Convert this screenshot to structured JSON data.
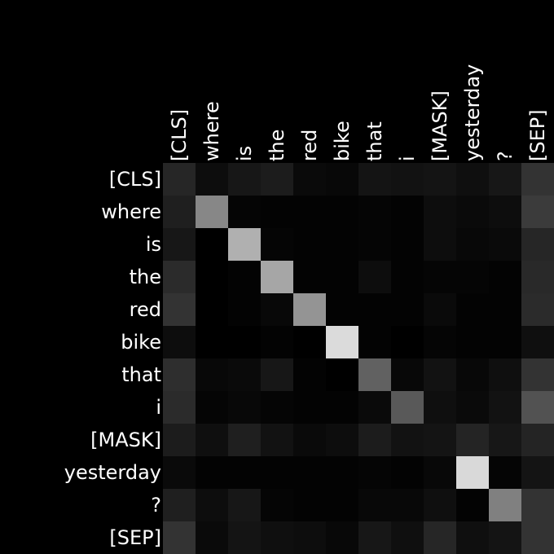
{
  "chart_data": {
    "type": "heatmap",
    "colormap": "grayscale",
    "grid": false,
    "row_labels": [
      "[CLS]",
      "where",
      "is",
      "the",
      "red",
      "bike",
      "that",
      "i",
      "[MASK]",
      "yesterday",
      "?",
      "[SEP]"
    ],
    "col_labels": [
      "[CLS]",
      "where",
      "is",
      "the",
      "red",
      "bike",
      "that",
      "i",
      "[MASK]",
      "yesterday",
      "?",
      "[SEP]"
    ],
    "values": [
      [
        0.15,
        0.05,
        0.09,
        0.11,
        0.04,
        0.03,
        0.08,
        0.07,
        0.08,
        0.06,
        0.09,
        0.2
      ],
      [
        0.12,
        0.53,
        0.02,
        0.01,
        0.01,
        0.01,
        0.02,
        0.01,
        0.05,
        0.04,
        0.05,
        0.23
      ],
      [
        0.09,
        0.0,
        0.69,
        0.02,
        0.01,
        0.01,
        0.02,
        0.01,
        0.05,
        0.03,
        0.04,
        0.15
      ],
      [
        0.17,
        0.0,
        0.01,
        0.65,
        0.01,
        0.01,
        0.05,
        0.01,
        0.02,
        0.02,
        0.01,
        0.16
      ],
      [
        0.2,
        0.0,
        0.01,
        0.03,
        0.58,
        0.01,
        0.01,
        0.01,
        0.04,
        0.01,
        0.01,
        0.17
      ],
      [
        0.05,
        0.0,
        0.0,
        0.01,
        0.0,
        0.86,
        0.01,
        0.0,
        0.02,
        0.01,
        0.01,
        0.06
      ],
      [
        0.18,
        0.03,
        0.04,
        0.09,
        0.01,
        0.0,
        0.38,
        0.03,
        0.07,
        0.03,
        0.06,
        0.2
      ],
      [
        0.17,
        0.02,
        0.03,
        0.02,
        0.01,
        0.01,
        0.04,
        0.35,
        0.06,
        0.04,
        0.07,
        0.32
      ],
      [
        0.11,
        0.06,
        0.12,
        0.07,
        0.04,
        0.05,
        0.11,
        0.07,
        0.08,
        0.14,
        0.09,
        0.14
      ],
      [
        0.04,
        0.01,
        0.01,
        0.01,
        0.01,
        0.01,
        0.02,
        0.01,
        0.03,
        0.85,
        0.02,
        0.08
      ],
      [
        0.12,
        0.05,
        0.09,
        0.02,
        0.01,
        0.01,
        0.03,
        0.03,
        0.06,
        0.01,
        0.5,
        0.2
      ],
      [
        0.2,
        0.04,
        0.08,
        0.06,
        0.05,
        0.03,
        0.09,
        0.06,
        0.15,
        0.06,
        0.08,
        0.2
      ]
    ]
  }
}
